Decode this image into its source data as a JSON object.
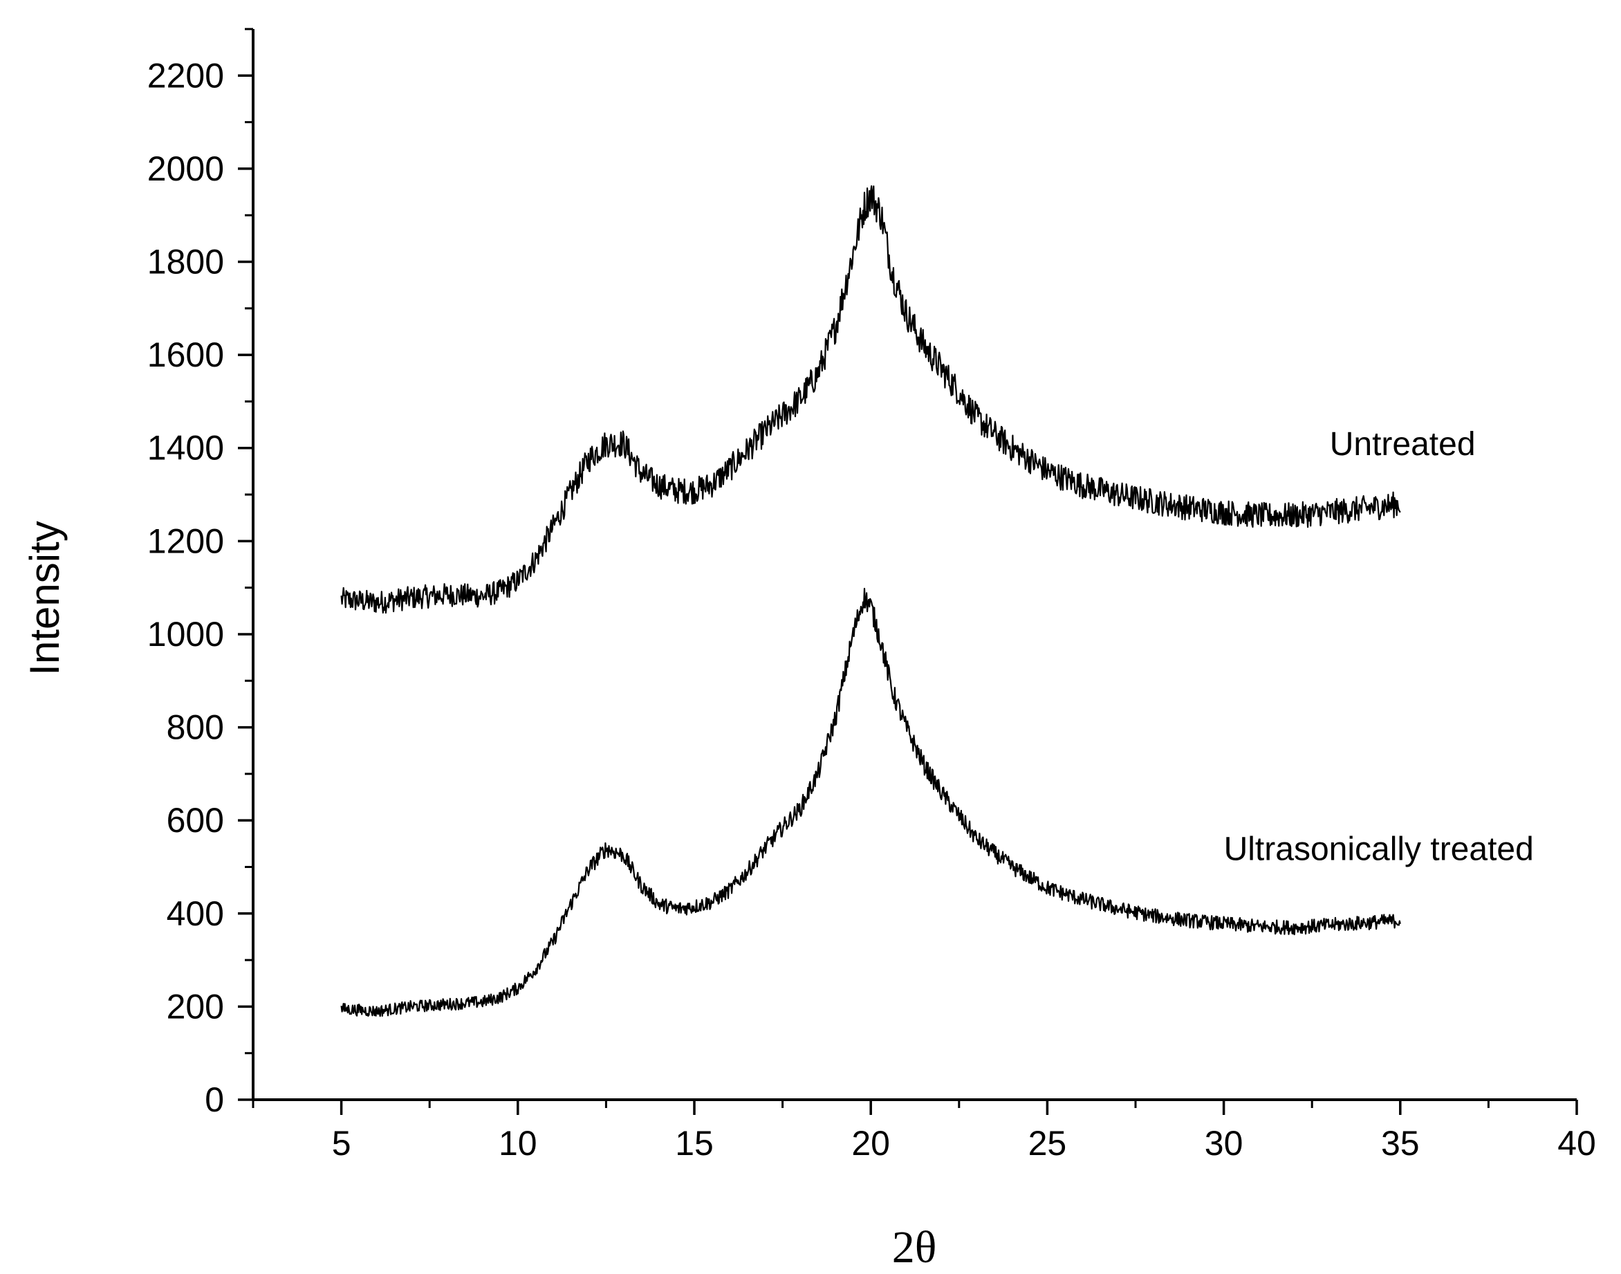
{
  "chart_data": {
    "type": "line",
    "xlabel": "2θ",
    "ylabel": "Intensity",
    "xlim": [
      2.5,
      40
    ],
    "ylim": [
      0,
      2300
    ],
    "xticks": [
      5,
      10,
      15,
      20,
      25,
      30,
      35,
      40
    ],
    "yticks": [
      0,
      200,
      400,
      600,
      800,
      1000,
      1200,
      1400,
      1600,
      1800,
      2000,
      2200
    ],
    "grid": false,
    "legend": "none",
    "line_color": "#000000",
    "series": [
      {
        "name": "Untreated",
        "label_anchor": [
          33.0,
          1385
        ],
        "x": [
          5,
          6,
          7,
          8,
          9,
          9.5,
          10,
          10.5,
          11,
          11.5,
          12,
          12.5,
          13,
          13.5,
          14,
          14.5,
          15,
          15.5,
          16,
          16.5,
          17,
          17.5,
          18,
          18.5,
          19,
          19.5,
          19.8,
          20,
          20.3,
          20.6,
          21,
          21.5,
          22,
          22.5,
          23,
          23.5,
          24,
          25,
          26,
          27,
          28,
          29,
          30,
          31,
          32,
          33,
          34,
          35
        ],
        "y": [
          1075,
          1068,
          1078,
          1085,
          1082,
          1092,
          1115,
          1160,
          1230,
          1305,
          1375,
          1410,
          1410,
          1345,
          1320,
          1308,
          1308,
          1322,
          1355,
          1395,
          1435,
          1470,
          1505,
          1560,
          1660,
          1820,
          1915,
          1945,
          1900,
          1780,
          1690,
          1620,
          1570,
          1520,
          1465,
          1430,
          1400,
          1350,
          1320,
          1300,
          1285,
          1272,
          1262,
          1255,
          1255,
          1262,
          1270,
          1280
        ]
      },
      {
        "name": "Ultrasonically treated",
        "label_anchor": [
          30.0,
          515
        ],
        "x": [
          5,
          6,
          7,
          8,
          9,
          9.5,
          10,
          10.5,
          11,
          11.5,
          12,
          12.5,
          13,
          13.5,
          14,
          14.5,
          15,
          15.5,
          16,
          16.5,
          17,
          17.5,
          18,
          18.5,
          19,
          19.5,
          19.8,
          20,
          20.3,
          20.6,
          21,
          21.5,
          22,
          22.5,
          23,
          23.5,
          24,
          25,
          26,
          27,
          28,
          29,
          30,
          31,
          32,
          33,
          34,
          35
        ],
        "y": [
          195,
          190,
          200,
          205,
          210,
          220,
          240,
          280,
          340,
          420,
          495,
          540,
          525,
          460,
          420,
          410,
          415,
          425,
          450,
          490,
          540,
          585,
          625,
          700,
          820,
          1000,
          1080,
          1060,
          980,
          880,
          800,
          720,
          660,
          610,
          560,
          530,
          500,
          455,
          430,
          410,
          395,
          385,
          378,
          372,
          370,
          375,
          380,
          385
        ]
      }
    ]
  }
}
